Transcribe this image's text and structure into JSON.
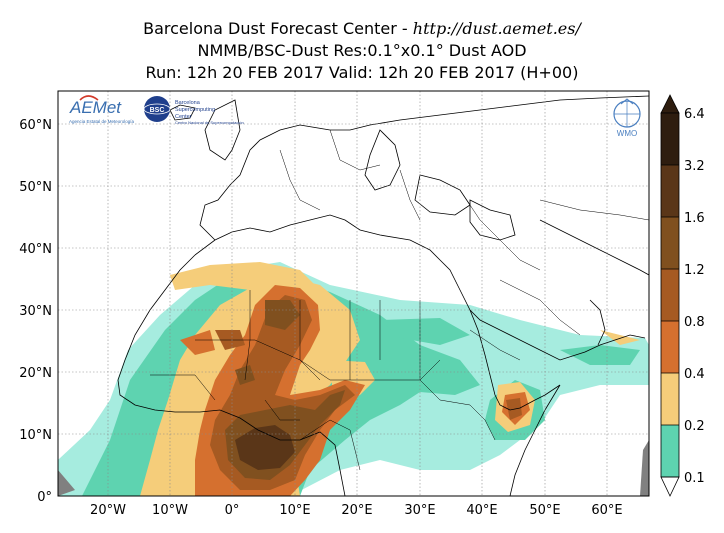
{
  "header": {
    "line1_prefix": "Barcelona Dust Forecast Center - ",
    "line1_url": "http://dust.aemet.es/",
    "line2": "NMMB/BSC-Dust   Res:0.1°x0.1°   Dust AOD",
    "line3": "Run: 12h 20 FEB 2017   Valid: 12h 20 FEB 2017 (H+00)"
  },
  "map": {
    "lon_range": [
      -28,
      67
    ],
    "lat_range": [
      0,
      65
    ],
    "x_ticks": [
      "20°W",
      "10°W",
      "0°",
      "10°E",
      "20°E",
      "30°E",
      "40°E",
      "50°E",
      "60°E"
    ],
    "y_ticks": [
      "0°",
      "10°N",
      "20°N",
      "30°N",
      "40°N",
      "50°N",
      "60°N"
    ],
    "grid": "dotted"
  },
  "colorbar": {
    "levels": [
      "0.1",
      "0.2",
      "0.4",
      "0.8",
      "1.2",
      "1.6",
      "3.2",
      "6.4"
    ],
    "colors": [
      "#a6ecdf",
      "#5ed3b0",
      "#f5cd7a",
      "#d5702f",
      "#a65a22",
      "#80501f",
      "#5a3618",
      "#2e1d0f"
    ]
  },
  "logos": {
    "aemet_text": "AEMet",
    "aemet_sub": "Agencia Estatal de Meteorología",
    "bsc_badge": "BSC",
    "bsc_text1": "Barcelona",
    "bsc_text2": "Supercomputing",
    "bsc_text3": "Center",
    "bsc_sub": "Centro Nacional de Supercomputación",
    "wmo_text": "WMO"
  }
}
